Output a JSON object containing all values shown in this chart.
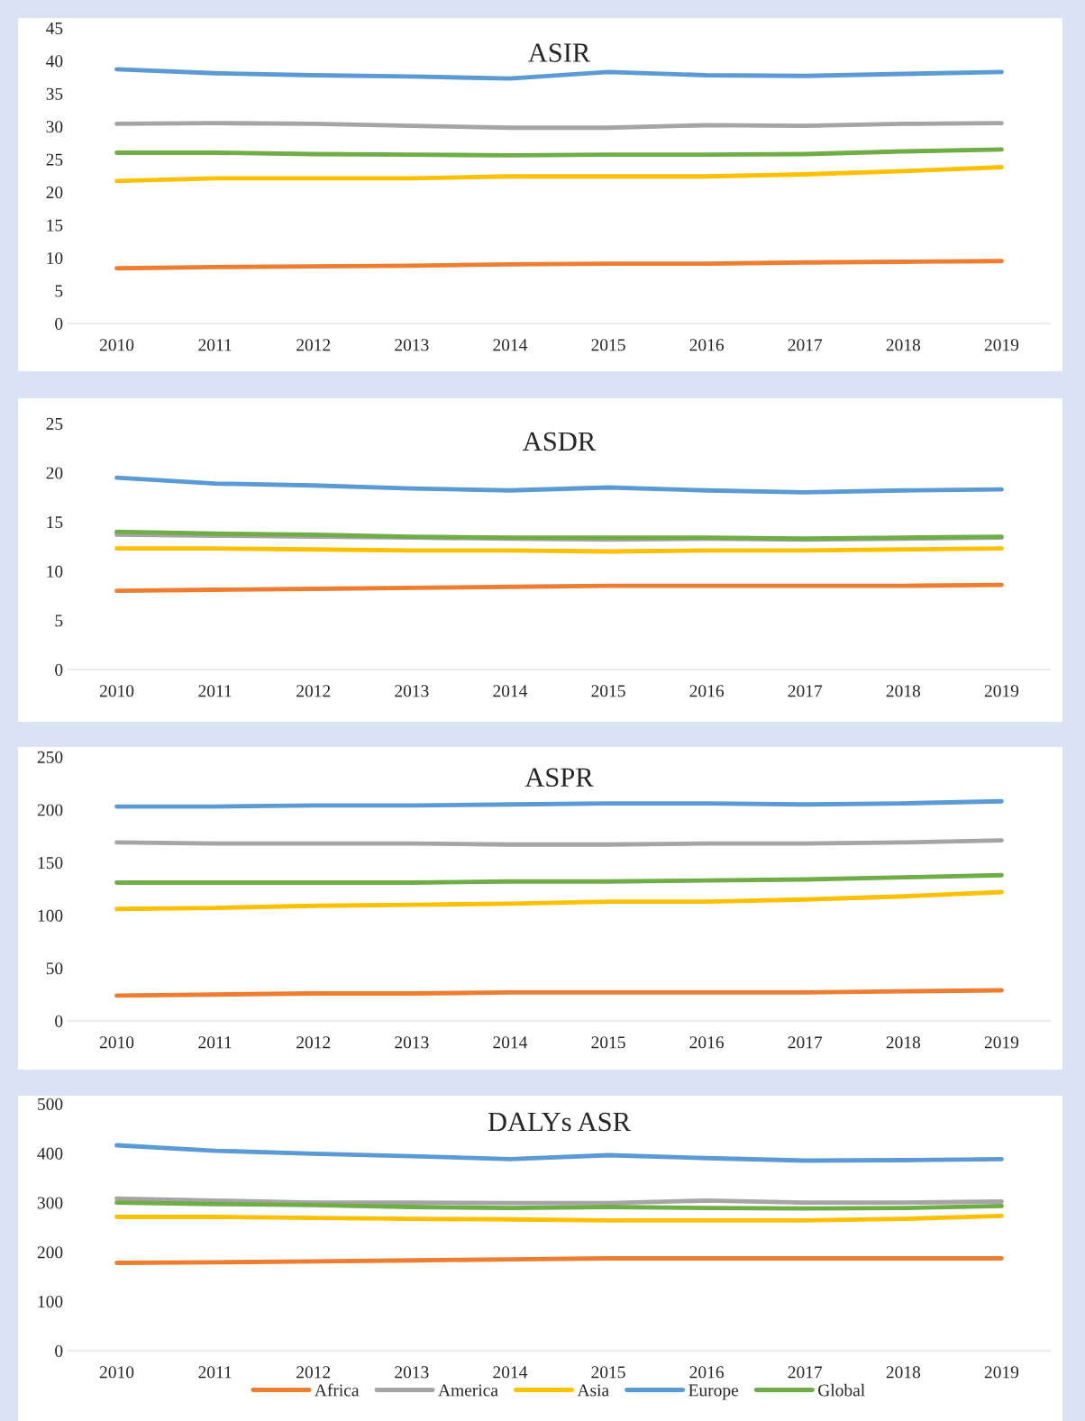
{
  "chart_data": [
    {
      "type": "line",
      "title": "ASIR",
      "categories": [
        "2010",
        "2011",
        "2012",
        "2013",
        "2014",
        "2015",
        "2016",
        "2017",
        "2018",
        "2019"
      ],
      "ylim": [
        0,
        45
      ],
      "yticks": [
        0,
        5,
        10,
        15,
        20,
        25,
        30,
        35,
        40,
        45
      ],
      "grid": false,
      "legend": false,
      "series": [
        {
          "color": "#ed7d31",
          "values": [
            8.4,
            8.6,
            8.7,
            8.8,
            9.0,
            9.1,
            9.1,
            9.3,
            9.4,
            9.5
          ]
        },
        {
          "color": "#a5a5a5",
          "values": [
            30.4,
            30.5,
            30.4,
            30.1,
            29.8,
            29.8,
            30.2,
            30.1,
            30.4,
            30.5
          ]
        },
        {
          "color": "#ffc000",
          "values": [
            21.7,
            22.1,
            22.1,
            22.1,
            22.4,
            22.4,
            22.4,
            22.7,
            23.2,
            23.8
          ]
        },
        {
          "color": "#5b9bd5",
          "values": [
            38.7,
            38.1,
            37.8,
            37.6,
            37.3,
            38.3,
            37.8,
            37.7,
            38.0,
            38.3
          ]
        },
        {
          "color": "#70ad47",
          "values": [
            26.0,
            26.0,
            25.8,
            25.7,
            25.6,
            25.7,
            25.7,
            25.8,
            26.2,
            26.5
          ]
        }
      ]
    },
    {
      "type": "line",
      "title": "ASDR",
      "categories": [
        "2010",
        "2011",
        "2012",
        "2013",
        "2014",
        "2015",
        "2016",
        "2017",
        "2018",
        "2019"
      ],
      "ylim": [
        0,
        25
      ],
      "yticks": [
        0,
        5,
        10,
        15,
        20,
        25
      ],
      "grid": false,
      "legend": false,
      "series": [
        {
          "color": "#ed7d31",
          "values": [
            8.0,
            8.1,
            8.2,
            8.3,
            8.4,
            8.5,
            8.5,
            8.5,
            8.5,
            8.6
          ]
        },
        {
          "color": "#a5a5a5",
          "values": [
            13.7,
            13.6,
            13.5,
            13.4,
            13.3,
            13.2,
            13.3,
            13.2,
            13.3,
            13.4
          ]
        },
        {
          "color": "#ffc000",
          "values": [
            12.3,
            12.3,
            12.2,
            12.1,
            12.1,
            12.0,
            12.1,
            12.1,
            12.2,
            12.3
          ]
        },
        {
          "color": "#5b9bd5",
          "values": [
            19.5,
            18.9,
            18.7,
            18.4,
            18.2,
            18.5,
            18.2,
            18.0,
            18.2,
            18.3
          ]
        },
        {
          "color": "#70ad47",
          "values": [
            14.0,
            13.8,
            13.7,
            13.5,
            13.4,
            13.4,
            13.4,
            13.3,
            13.4,
            13.5
          ]
        }
      ]
    },
    {
      "type": "line",
      "title": "ASPR",
      "categories": [
        "2010",
        "2011",
        "2012",
        "2013",
        "2014",
        "2015",
        "2016",
        "2017",
        "2018",
        "2019"
      ],
      "ylim": [
        0,
        250
      ],
      "yticks": [
        0,
        50,
        100,
        150,
        200,
        250
      ],
      "grid": false,
      "legend": false,
      "series": [
        {
          "color": "#ed7d31",
          "values": [
            24,
            25,
            26,
            26,
            27,
            27,
            27,
            27,
            28,
            29
          ]
        },
        {
          "color": "#a5a5a5",
          "values": [
            169,
            168,
            168,
            168,
            167,
            167,
            168,
            168,
            169,
            171
          ]
        },
        {
          "color": "#ffc000",
          "values": [
            106,
            107,
            109,
            110,
            111,
            113,
            113,
            115,
            118,
            122
          ]
        },
        {
          "color": "#5b9bd5",
          "values": [
            203,
            203,
            204,
            204,
            205,
            206,
            206,
            205,
            206,
            208
          ]
        },
        {
          "color": "#70ad47",
          "values": [
            131,
            131,
            131,
            131,
            132,
            132,
            133,
            134,
            136,
            138
          ]
        }
      ]
    },
    {
      "type": "line",
      "title": "DALYs ASR",
      "categories": [
        "2010",
        "2011",
        "2012",
        "2013",
        "2014",
        "2015",
        "2016",
        "2017",
        "2018",
        "2019"
      ],
      "ylim": [
        0,
        500
      ],
      "yticks": [
        0,
        100,
        200,
        300,
        400,
        500
      ],
      "grid": false,
      "legend": "bottom",
      "series": [
        {
          "name": "Africa",
          "color": "#ed7d31",
          "values": [
            178,
            179,
            181,
            183,
            185,
            187,
            187,
            187,
            187,
            187
          ]
        },
        {
          "name": "America",
          "color": "#a5a5a5",
          "values": [
            308,
            304,
            300,
            300,
            299,
            299,
            304,
            300,
            300,
            302
          ]
        },
        {
          "name": "Asia",
          "color": "#ffc000",
          "values": [
            271,
            271,
            269,
            267,
            266,
            264,
            264,
            264,
            267,
            273
          ]
        },
        {
          "name": "Europe",
          "color": "#5b9bd5",
          "values": [
            416,
            405,
            399,
            394,
            388,
            396,
            390,
            385,
            386,
            388
          ]
        },
        {
          "name": "Global",
          "color": "#70ad47",
          "values": [
            300,
            297,
            295,
            291,
            289,
            291,
            289,
            288,
            289,
            293
          ]
        }
      ]
    }
  ]
}
